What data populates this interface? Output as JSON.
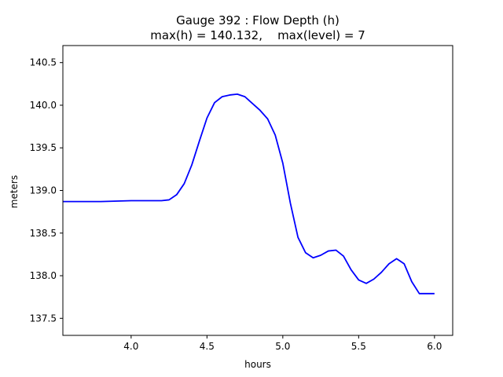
{
  "chart_data": {
    "type": "line",
    "title": "Gauge 392 : Flow Depth (h)",
    "subtitle": "max(h) = 140.132,    max(level) = 7",
    "xlabel": "hours",
    "ylabel": "meters",
    "xlim": [
      3.55,
      6.12
    ],
    "ylim": [
      137.3,
      140.7
    ],
    "xticks": [
      4.0,
      4.5,
      5.0,
      5.5,
      6.0
    ],
    "xtick_labels": [
      "4.0",
      "4.5",
      "5.0",
      "5.5",
      "6.0"
    ],
    "yticks": [
      137.5,
      138.0,
      138.5,
      139.0,
      139.5,
      140.0,
      140.5
    ],
    "ytick_labels": [
      "137.5",
      "138.0",
      "138.5",
      "139.0",
      "139.5",
      "140.0",
      "140.5"
    ],
    "grid": false,
    "line_color": "#0000ff",
    "series": [
      {
        "x": [
          3.55,
          3.8,
          4.0,
          4.2,
          4.25,
          4.3,
          4.35,
          4.4,
          4.45,
          4.5,
          4.55,
          4.6,
          4.65,
          4.7,
          4.75,
          4.8,
          4.85,
          4.9,
          4.95,
          5.0,
          5.05,
          5.1,
          5.15,
          5.2,
          5.25,
          5.3,
          5.35,
          5.4,
          5.45,
          5.5,
          5.55,
          5.6,
          5.65,
          5.7,
          5.75,
          5.8,
          5.85,
          5.9,
          5.95,
          6.0
        ],
        "y": [
          138.87,
          138.87,
          138.88,
          138.88,
          138.89,
          138.95,
          139.08,
          139.3,
          139.58,
          139.85,
          140.03,
          140.1,
          140.12,
          140.13,
          140.1,
          140.02,
          139.94,
          139.84,
          139.65,
          139.32,
          138.85,
          138.45,
          138.27,
          138.21,
          138.24,
          138.29,
          138.3,
          138.23,
          138.07,
          137.95,
          137.91,
          137.96,
          138.04,
          138.14,
          138.2,
          138.14,
          137.93,
          137.79,
          137.79,
          137.79
        ]
      }
    ]
  }
}
